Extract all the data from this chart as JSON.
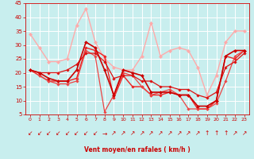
{
  "xlabel": "Vent moyen/en rafales ( km/h )",
  "xlim": [
    -0.5,
    23.5
  ],
  "ylim": [
    5,
    45
  ],
  "yticks": [
    5,
    10,
    15,
    20,
    25,
    30,
    35,
    40,
    45
  ],
  "xticks": [
    0,
    1,
    2,
    3,
    4,
    5,
    6,
    7,
    8,
    9,
    10,
    11,
    12,
    13,
    14,
    15,
    16,
    17,
    18,
    19,
    20,
    21,
    22,
    23
  ],
  "bg_color": "#c8eeee",
  "grid_color": "#ffffff",
  "series": [
    {
      "x": [
        0,
        1,
        2,
        3,
        4,
        5,
        6,
        7,
        8,
        9,
        10,
        11,
        12,
        13,
        14,
        15,
        16,
        17,
        18,
        19,
        20,
        21,
        22,
        23
      ],
      "y": [
        21,
        20,
        18,
        17,
        17,
        21,
        31,
        29,
        21,
        12,
        21,
        20,
        19,
        13,
        13,
        13,
        12,
        12,
        8,
        8,
        10,
        26,
        28,
        28
      ],
      "color": "#cc0000",
      "lw": 1.2,
      "marker": "D",
      "ms": 2.0,
      "zorder": 4
    },
    {
      "x": [
        0,
        1,
        2,
        3,
        4,
        5,
        6,
        7,
        8,
        9,
        10,
        11,
        12,
        13,
        14,
        15,
        16,
        17,
        18,
        19,
        20,
        21,
        22,
        23
      ],
      "y": [
        21,
        19,
        17,
        17,
        17,
        18,
        29,
        28,
        26,
        11,
        19,
        15,
        15,
        12,
        12,
        13,
        12,
        12,
        7,
        7,
        10,
        26,
        25,
        28
      ],
      "color": "#ee2222",
      "lw": 1.0,
      "marker": "D",
      "ms": 1.8,
      "zorder": 3
    },
    {
      "x": [
        0,
        1,
        2,
        3,
        4,
        5,
        6,
        7,
        8,
        9,
        10,
        11,
        12,
        13,
        14,
        15,
        16,
        17,
        18,
        19,
        20,
        21,
        22,
        23
      ],
      "y": [
        21,
        19,
        17,
        16,
        16,
        17,
        28,
        26,
        6,
        12,
        20,
        19,
        15,
        12,
        13,
        14,
        12,
        7,
        7,
        7,
        9,
        17,
        26,
        28
      ],
      "color": "#ee4444",
      "lw": 0.9,
      "marker": "D",
      "ms": 1.8,
      "zorder": 3
    },
    {
      "x": [
        0,
        1,
        2,
        3,
        4,
        5,
        6,
        7,
        8,
        9,
        10,
        11,
        12,
        13,
        14,
        15,
        16,
        17,
        18,
        19,
        20,
        21,
        22,
        23
      ],
      "y": [
        34,
        29,
        24,
        24,
        25,
        37,
        43,
        31,
        25,
        22,
        21,
        21,
        26,
        38,
        26,
        28,
        29,
        28,
        22,
        12,
        19,
        31,
        35,
        35
      ],
      "color": "#ffaaaa",
      "lw": 1.0,
      "marker": "D",
      "ms": 2.2,
      "zorder": 2
    },
    {
      "x": [
        0,
        1,
        2,
        3,
        4,
        5,
        6,
        7,
        8,
        9,
        10,
        11,
        12,
        13,
        14,
        15,
        16,
        17,
        18,
        19,
        20,
        21,
        22,
        23
      ],
      "y": [
        21,
        20,
        20,
        20,
        21,
        23,
        27,
        27,
        24,
        18,
        19,
        19,
        17,
        17,
        15,
        15,
        14,
        14,
        12,
        11,
        13,
        22,
        24,
        27
      ],
      "color": "#dd1111",
      "lw": 0.9,
      "marker": "D",
      "ms": 1.8,
      "zorder": 3
    }
  ],
  "wind_symbols": [
    "↙",
    "↙",
    "↙",
    "↙",
    "↙",
    "↙",
    "↙",
    "↙",
    "→",
    "↗",
    "↗",
    "↗",
    "↗",
    "↗",
    "↗",
    "↗",
    "↗",
    "↗",
    "↗",
    "↑",
    "↑",
    "↑",
    "↗",
    "↗"
  ]
}
